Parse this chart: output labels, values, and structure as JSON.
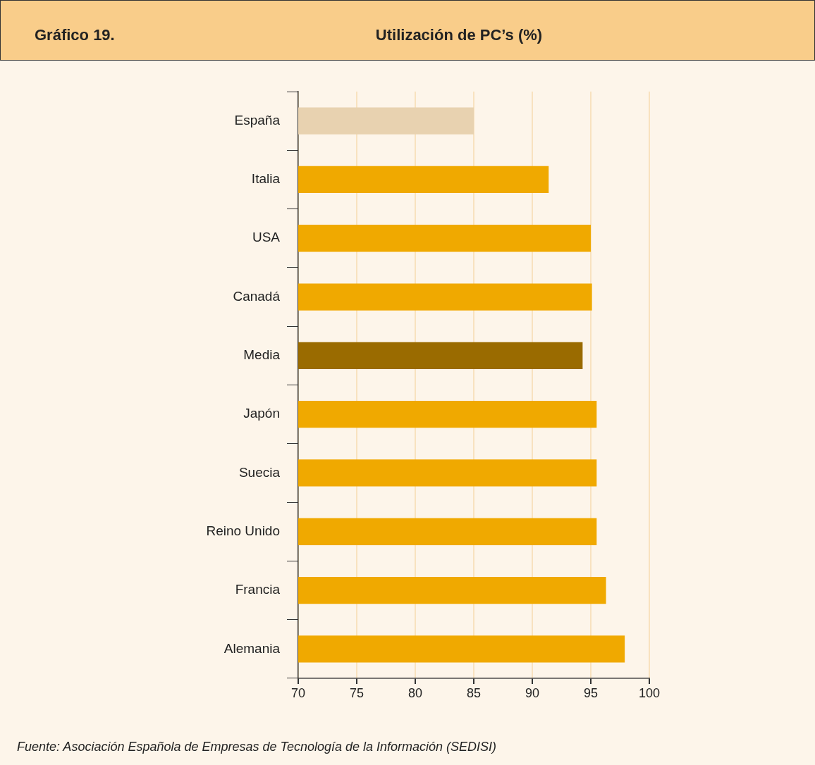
{
  "chart_data": {
    "type": "bar",
    "orientation": "horizontal",
    "title": "Utilización de PC’s (%)",
    "annotations": [
      "Gráfico 19.",
      "Fuente: Asociación Española de Empresas de Tecnología de la Información (SEDISI)"
    ],
    "categories": [
      "España",
      "Italia",
      "USA",
      "Canadá",
      "Media",
      "Japón",
      "Suecia",
      "Reino Unido",
      "Francia",
      "Alemania"
    ],
    "values": [
      85,
      91.4,
      95,
      95.1,
      94.3,
      95.5,
      95.5,
      95.5,
      96.3,
      97.9
    ],
    "colors": [
      "#e8d2b0",
      "#f0a900",
      "#f0a900",
      "#f0a900",
      "#9a6b00",
      "#f0a900",
      "#f0a900",
      "#f0a900",
      "#f0a900",
      "#f0a900"
    ],
    "xlim": [
      70,
      100
    ],
    "xticks": [
      70,
      75,
      80,
      85,
      90,
      95,
      100
    ],
    "grid": "x",
    "legend": false
  }
}
